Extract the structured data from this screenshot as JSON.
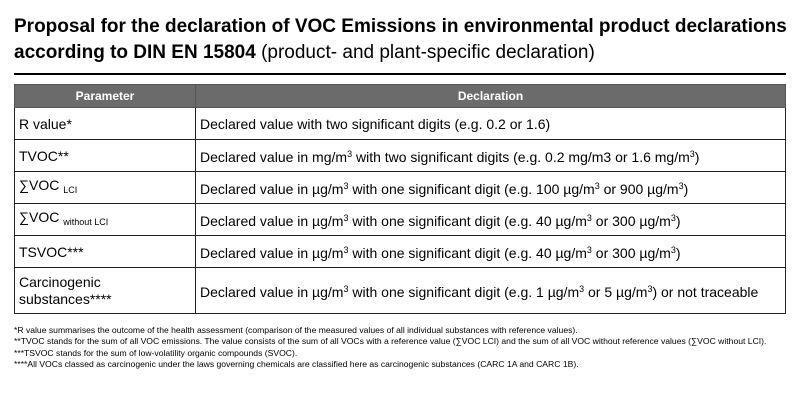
{
  "title": {
    "bold": "Proposal for the declaration of VOC Emissions in environmental product declarations according to DIN EN 15804",
    "normal": " (product- and plant-specific declaration)"
  },
  "table": {
    "headers": [
      "Parameter",
      "Declaration"
    ],
    "rows": [
      {
        "param": "R value*",
        "decl": "Declared value with two significant digits (e.g. 0.2 or 1.6)"
      },
      {
        "param": "TVOC**",
        "decl_a": "Declared value in mg/m",
        "decl_b": " with two significant digits (e.g. 0.2 mg/m3 or 1.6 mg/m",
        "decl_c": ")",
        "sup": "3"
      },
      {
        "param": "∑VOC",
        "param_sub": "LCI",
        "decl_a": "Declared value in µg/m",
        "decl_b": " with one significant digit (e.g. 100 µg/m",
        "decl_c": " or 900 µg/m",
        "decl_d": ")",
        "sup": "3"
      },
      {
        "param": "∑VOC",
        "param_sub": "without LCI",
        "decl_a": "Declared value in µg/m",
        "decl_b": " with one significant digit (e.g. 40 µg/m",
        "decl_c": " or 300 µg/m",
        "decl_d": ")",
        "sup": "3"
      },
      {
        "param": "TSVOC***",
        "decl_a": "Declared value in µg/m",
        "decl_b": " with one significant digit (e.g. 40 µg/m",
        "decl_c": " or 300 µg/m",
        "decl_d": ")",
        "sup": "3"
      },
      {
        "param": "Carcinogenic substances****",
        "decl_a": "Declared value in µg/m",
        "decl_b": " with one significant digit (e.g. 1 µg/m",
        "decl_c": " or 5 µg/m",
        "decl_d": ") or not traceable",
        "sup": "3"
      }
    ]
  },
  "notes": [
    "*R value summarises the outcome of the health assessment (comparison of the measured values of all individual substances with reference values).",
    "**TVOC stands for the sum of all VOC emissions. The value consists of the sum of all VOCs with a reference value (∑VOC LCI) and the sum of all VOC without reference values (∑VOC without LCI).",
    "***TSVOC stands for the sum of low-volatility organic compounds (SVOC).",
    "****All VOCs classed as carcinogenic under the laws governing chemicals are classified here as carcinogenic substances (CARC 1A and CARC 1B)."
  ]
}
